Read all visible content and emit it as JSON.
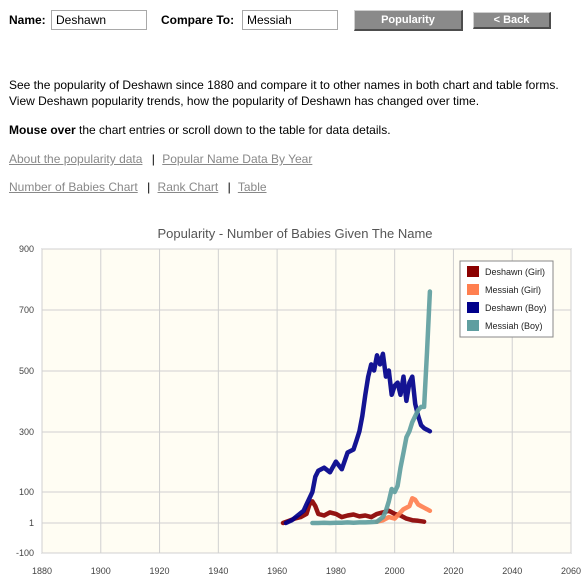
{
  "form": {
    "name_label": "Name:",
    "name_value": "Deshawn",
    "compare_label": "Compare To:",
    "compare_value": "Messiah",
    "popularity_button": "Popularity",
    "back_button": "< Back"
  },
  "description": {
    "line1": "See the popularity of Deshawn since 1880 and compare it to other names in both chart and table forms.",
    "line2": "View Deshawn popularity trends, how the popularity of Deshawn has changed over time.",
    "mouse_bold": "Mouse over",
    "mouse_rest": " the chart entries or scroll down to the table for data details."
  },
  "links": {
    "about": "About the popularity data",
    "popular_names": "Popular Name Data By Year",
    "number_chart": "Number of Babies Chart",
    "rank_chart": "Rank Chart",
    "table": "Table",
    "separator": "|"
  },
  "colors": {
    "deshawn_girl": "#8b0000",
    "messiah_girl": "#ff7f50",
    "deshawn_boy": "#00008b",
    "messiah_boy": "#5f9ea0",
    "plot_bg": "#fffdf3",
    "grid": "#d0d0d0"
  },
  "chart_data": {
    "type": "line",
    "title": "Popularity - Number of Babies Given The Name",
    "xlim": [
      1880,
      2060
    ],
    "x_ticks": [
      "1880",
      "1900",
      "1920",
      "1940",
      "1960",
      "1980",
      "2000",
      "2020",
      "2040",
      "2060"
    ],
    "y_ticks": [
      "900",
      "700",
      "500",
      "300",
      "100",
      "1",
      "-100"
    ],
    "legend_position": "top-right",
    "series": [
      {
        "name": "Deshawn (Girl)",
        "color": "#8b0000",
        "x": [
          1962,
          1964,
          1966,
          1968,
          1970,
          1971,
          1972,
          1973,
          1974,
          1976,
          1978,
          1980,
          1982,
          1984,
          1986,
          1988,
          1990,
          1992,
          1994,
          1996,
          1998,
          2000,
          2002,
          2004,
          2006,
          2008,
          2010
        ],
        "y": [
          1,
          8,
          15,
          20,
          30,
          60,
          70,
          55,
          30,
          25,
          35,
          30,
          20,
          25,
          28,
          22,
          25,
          20,
          30,
          35,
          40,
          30,
          25,
          15,
          10,
          8,
          5
        ]
      },
      {
        "name": "Messiah (Girl)",
        "color": "#ff7f50",
        "x": [
          1994,
          1996,
          1998,
          2000,
          2001,
          2002,
          2003,
          2004,
          2005,
          2006,
          2007,
          2008,
          2009,
          2010,
          2011,
          2012
        ],
        "y": [
          5,
          10,
          20,
          15,
          25,
          35,
          45,
          50,
          55,
          80,
          75,
          60,
          55,
          50,
          45,
          40
        ]
      },
      {
        "name": "Deshawn (Boy)",
        "color": "#00008b",
        "x": [
          1963,
          1965,
          1967,
          1969,
          1970,
          1972,
          1973,
          1974,
          1976,
          1978,
          1980,
          1982,
          1984,
          1986,
          1987,
          1988,
          1989,
          1990,
          1991,
          1992,
          1993,
          1994,
          1995,
          1996,
          1997,
          1998,
          1999,
          2000,
          2001,
          2002,
          2003,
          2004,
          2005,
          2006,
          2007,
          2008,
          2009,
          2010,
          2011,
          2012
        ],
        "y": [
          1,
          10,
          25,
          40,
          60,
          100,
          150,
          170,
          180,
          165,
          200,
          175,
          230,
          240,
          270,
          300,
          350,
          420,
          480,
          520,
          500,
          550,
          520,
          555,
          480,
          500,
          420,
          450,
          460,
          420,
          480,
          400,
          460,
          480,
          390,
          350,
          320,
          310,
          305,
          300
        ]
      },
      {
        "name": "Messiah (Boy)",
        "color": "#5f9ea0",
        "x": [
          1972,
          1974,
          1976,
          1978,
          1980,
          1982,
          1984,
          1986,
          1988,
          1990,
          1992,
          1994,
          1996,
          1997,
          1998,
          1999,
          2000,
          2001,
          2002,
          2003,
          2004,
          2005,
          2006,
          2007,
          2008,
          2009,
          2010,
          2011,
          2012
        ],
        "y": [
          1,
          1,
          2,
          1,
          2,
          2,
          3,
          2,
          3,
          3,
          4,
          5,
          20,
          40,
          70,
          110,
          100,
          120,
          180,
          230,
          280,
          300,
          330,
          350,
          370,
          380,
          380,
          560,
          760
        ]
      }
    ]
  }
}
